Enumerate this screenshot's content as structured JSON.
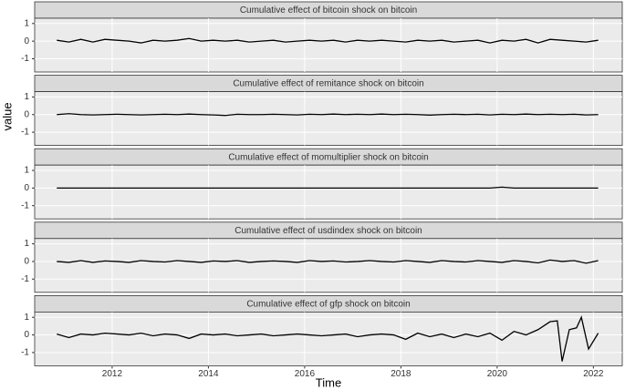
{
  "chart_data": [
    {
      "type": "line",
      "title": "Cumulative effect of  bitcoin shock on  bitcoin",
      "y_label": "value",
      "x": [
        2010.85,
        2011.1,
        2011.35,
        2011.6,
        2011.85,
        2012.1,
        2012.35,
        2012.6,
        2012.85,
        2013.1,
        2013.35,
        2013.6,
        2013.85,
        2014.1,
        2014.35,
        2014.6,
        2014.85,
        2015.1,
        2015.35,
        2015.6,
        2015.85,
        2016.1,
        2016.35,
        2016.6,
        2016.85,
        2017.1,
        2017.35,
        2017.6,
        2017.85,
        2018.1,
        2018.35,
        2018.6,
        2018.85,
        2019.1,
        2019.35,
        2019.6,
        2019.85,
        2020.1,
        2020.35,
        2020.6,
        2020.85,
        2021.1,
        2021.35,
        2021.6,
        2021.85,
        2022.1
      ],
      "series": [
        {
          "color": "#000000",
          "values": [
            0.05,
            -0.05,
            0.1,
            -0.05,
            0.1,
            0.05,
            0.0,
            -0.1,
            0.05,
            0.0,
            0.05,
            0.15,
            0.0,
            0.05,
            0.0,
            0.05,
            -0.05,
            0.0,
            0.05,
            -0.05,
            0.0,
            0.05,
            0.0,
            0.05,
            -0.05,
            0.05,
            0.0,
            0.05,
            0.0,
            -0.05,
            0.05,
            0.0,
            0.05,
            -0.05,
            0.0,
            0.05,
            -0.1,
            0.05,
            0.0,
            0.1,
            -0.1,
            0.1,
            0.05,
            0.0,
            -0.05,
            0.05
          ]
        }
      ],
      "xlim": [
        2010.39,
        2022.6
      ],
      "xticks": [
        2012,
        2014,
        2016,
        2018,
        2020,
        2022
      ],
      "ylim": [
        -1.75,
        1.3
      ],
      "yticks": [
        -1,
        0,
        1
      ],
      "grid": true
    },
    {
      "type": "line",
      "title": "Cumulative effect of  remitance shock on  bitcoin",
      "x": [
        2010.85,
        2011.1,
        2011.35,
        2011.6,
        2011.85,
        2012.1,
        2012.35,
        2012.6,
        2012.85,
        2013.1,
        2013.35,
        2013.6,
        2013.85,
        2014.1,
        2014.35,
        2014.6,
        2014.85,
        2015.1,
        2015.35,
        2015.6,
        2015.85,
        2016.1,
        2016.35,
        2016.6,
        2016.85,
        2017.1,
        2017.35,
        2017.6,
        2017.85,
        2018.1,
        2018.35,
        2018.6,
        2018.85,
        2019.1,
        2019.35,
        2019.6,
        2019.85,
        2020.1,
        2020.35,
        2020.6,
        2020.85,
        2021.1,
        2021.35,
        2021.6,
        2021.85,
        2022.1
      ],
      "series": [
        {
          "color": "#000000",
          "values": [
            0,
            0.05,
            0,
            -0.02,
            0,
            0.02,
            0,
            -0.02,
            0,
            0.02,
            0,
            0.03,
            0,
            -0.02,
            -0.05,
            0.02,
            0,
            0,
            0.02,
            0,
            -0.02,
            0.02,
            0,
            0.03,
            0,
            0.02,
            0,
            0.03,
            0,
            0.02,
            0,
            -0.03,
            0,
            0.02,
            0,
            0.02,
            -0.02,
            0.02,
            0,
            0.03,
            0,
            0.02,
            0,
            0.02,
            -0.02,
            0
          ]
        }
      ],
      "xlim": [
        2010.39,
        2022.6
      ],
      "xticks": [
        2012,
        2014,
        2016,
        2018,
        2020,
        2022
      ],
      "ylim": [
        -1.75,
        1.3
      ],
      "yticks": [
        -1,
        0,
        1
      ],
      "grid": true
    },
    {
      "type": "line",
      "title": "Cumulative effect of  momultiplier shock on  bitcoin",
      "x": [
        2010.85,
        2011.1,
        2011.35,
        2011.6,
        2011.85,
        2012.1,
        2012.35,
        2012.6,
        2012.85,
        2013.1,
        2013.35,
        2013.6,
        2013.85,
        2014.1,
        2014.35,
        2014.6,
        2014.85,
        2015.1,
        2015.35,
        2015.6,
        2015.85,
        2016.1,
        2016.35,
        2016.6,
        2016.85,
        2017.1,
        2017.35,
        2017.6,
        2017.85,
        2018.1,
        2018.35,
        2018.6,
        2018.85,
        2019.1,
        2019.35,
        2019.6,
        2019.85,
        2020.1,
        2020.35,
        2020.6,
        2020.85,
        2021.1,
        2021.35,
        2021.6,
        2021.85,
        2022.1
      ],
      "series": [
        {
          "color": "#000000",
          "values": [
            0,
            0,
            0,
            0,
            0,
            0,
            0,
            0,
            0,
            0,
            0,
            0,
            0,
            0,
            0,
            0,
            0,
            0,
            0,
            0,
            0,
            0,
            0,
            0,
            0,
            0,
            0,
            0,
            0,
            0,
            0,
            0,
            0,
            0,
            0,
            0,
            0,
            0.05,
            0,
            0,
            0,
            0,
            0,
            0,
            0,
            0
          ]
        }
      ],
      "xlim": [
        2010.39,
        2022.6
      ],
      "xticks": [
        2012,
        2014,
        2016,
        2018,
        2020,
        2022
      ],
      "ylim": [
        -1.75,
        1.3
      ],
      "yticks": [
        -1,
        0,
        1
      ],
      "grid": true
    },
    {
      "type": "line",
      "title": "Cumulative effect of  usdindex shock on  bitcoin",
      "x": [
        2010.85,
        2011.1,
        2011.35,
        2011.6,
        2011.85,
        2012.1,
        2012.35,
        2012.6,
        2012.85,
        2013.1,
        2013.35,
        2013.6,
        2013.85,
        2014.1,
        2014.35,
        2014.6,
        2014.85,
        2015.1,
        2015.35,
        2015.6,
        2015.85,
        2016.1,
        2016.35,
        2016.6,
        2016.85,
        2017.1,
        2017.35,
        2017.6,
        2017.85,
        2018.1,
        2018.35,
        2018.6,
        2018.85,
        2019.1,
        2019.35,
        2019.6,
        2019.85,
        2020.1,
        2020.35,
        2020.6,
        2020.85,
        2021.1,
        2021.35,
        2021.6,
        2021.85,
        2022.1
      ],
      "series": [
        {
          "color": "#000000",
          "values": [
            0,
            -0.05,
            0.05,
            -0.05,
            0.03,
            0,
            -0.05,
            0.05,
            0,
            -0.03,
            0.05,
            0,
            -0.05,
            0.03,
            0,
            0.05,
            -0.05,
            0,
            0.03,
            0,
            -0.05,
            0.05,
            0,
            0.03,
            -0.03,
            0,
            0.05,
            0,
            -0.03,
            0.05,
            0,
            -0.05,
            0.05,
            0,
            -0.03,
            0.05,
            0,
            -0.05,
            0.05,
            0,
            -0.08,
            0.08,
            0,
            0.05,
            -0.1,
            0.05
          ]
        }
      ],
      "xlim": [
        2010.39,
        2022.6
      ],
      "xticks": [
        2012,
        2014,
        2016,
        2018,
        2020,
        2022
      ],
      "ylim": [
        -1.75,
        1.3
      ],
      "yticks": [
        -1,
        0,
        1
      ],
      "grid": true
    },
    {
      "type": "line",
      "title": "Cumulative effect of  gfp shock on  bitcoin",
      "x_label": "Time",
      "x": [
        2010.85,
        2011.1,
        2011.35,
        2011.6,
        2011.85,
        2012.1,
        2012.35,
        2012.6,
        2012.85,
        2013.1,
        2013.35,
        2013.6,
        2013.85,
        2014.1,
        2014.35,
        2014.6,
        2014.85,
        2015.1,
        2015.35,
        2015.6,
        2015.85,
        2016.1,
        2016.35,
        2016.6,
        2016.85,
        2017.1,
        2017.35,
        2017.6,
        2017.85,
        2018.1,
        2018.35,
        2018.6,
        2018.85,
        2019.1,
        2019.35,
        2019.6,
        2019.85,
        2020.1,
        2020.35,
        2020.6,
        2020.85,
        2021.1,
        2021.25,
        2021.35,
        2021.5,
        2021.65,
        2021.75,
        2021.9,
        2022.1
      ],
      "series": [
        {
          "color": "#000000",
          "values": [
            0.05,
            -0.15,
            0.05,
            0.0,
            0.1,
            0.05,
            0.0,
            0.1,
            -0.05,
            0.05,
            0.0,
            -0.2,
            0.05,
            0.0,
            0.05,
            -0.05,
            0.0,
            0.05,
            -0.05,
            0.0,
            0.05,
            0.0,
            -0.05,
            0.0,
            0.05,
            -0.1,
            0.0,
            0.05,
            0.0,
            -0.25,
            0.1,
            -0.1,
            0.05,
            -0.15,
            0.05,
            -0.1,
            0.1,
            -0.3,
            0.2,
            0.0,
            0.3,
            0.75,
            0.8,
            -1.5,
            0.3,
            0.4,
            1.0,
            -0.8,
            0.1
          ]
        }
      ],
      "xlim": [
        2010.39,
        2022.6
      ],
      "xticks": [
        2012,
        2014,
        2016,
        2018,
        2020,
        2022
      ],
      "ylim": [
        -1.75,
        1.3
      ],
      "yticks": [
        -1,
        0,
        1
      ],
      "grid": true
    }
  ]
}
